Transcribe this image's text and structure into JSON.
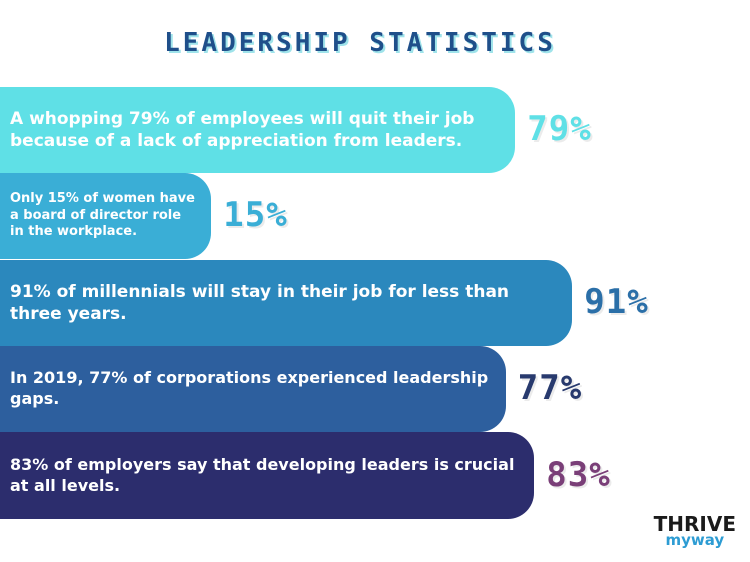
{
  "chart_data": {
    "type": "bar",
    "title": "LEADERSHIP STATISTICS",
    "orientation": "horizontal",
    "bars": [
      {
        "text": "A whopping 79% of employees will quit their job because of a lack of appreciation from leaders.",
        "label": "79%",
        "value": 79,
        "color": "#5fe0e6",
        "label_color": "#5fe0e6"
      },
      {
        "text": "Only 15% of women have a board of director role in the workplace.",
        "label": "15%",
        "value": 15,
        "color": "#3aaed6",
        "label_color": "#3aaed6"
      },
      {
        "text": "91% of millennials will stay in their job for less than three years.",
        "label": "91%",
        "value": 91,
        "color": "#2b88bd",
        "label_color": "#2b6fa8"
      },
      {
        "text": "In 2019, 77% of corporations experienced leadership gaps.",
        "label": "77%",
        "value": 77,
        "color": "#2d5f9e",
        "label_color": "#283a6e"
      },
      {
        "text": "83% of employers say that developing leaders is crucial at all levels.",
        "label": "83%",
        "value": 83,
        "color": "#2c2d6d",
        "label_color": "#7a3f78"
      }
    ]
  },
  "logo": {
    "line1": "THRIVE",
    "line2": "myway"
  }
}
